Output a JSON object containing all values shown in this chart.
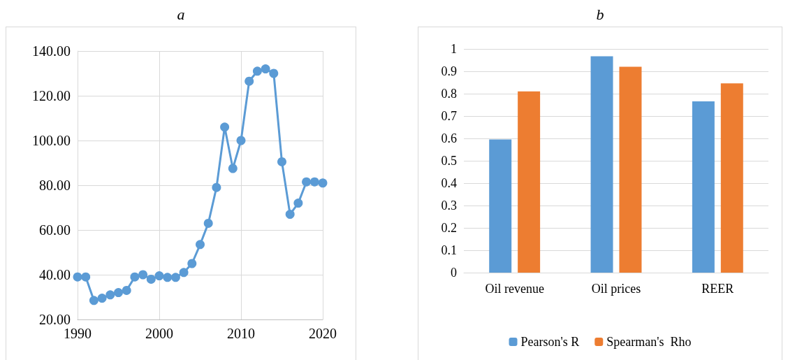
{
  "chart_data": [
    {
      "type": "line",
      "title": "a",
      "x": [
        1990,
        1991,
        1992,
        1993,
        1994,
        1995,
        1996,
        1997,
        1998,
        1999,
        2000,
        2001,
        2002,
        2003,
        2004,
        2005,
        2006,
        2007,
        2008,
        2009,
        2010,
        2011,
        2012,
        2013,
        2014,
        2015,
        2016,
        2017,
        2018,
        2019,
        2020
      ],
      "series": [
        {
          "color": "#5b9bd5",
          "values": [
            39,
            39,
            28.5,
            29.5,
            31,
            32,
            33,
            39,
            40,
            38,
            39.5,
            38.8,
            38.8,
            41,
            45,
            53.5,
            63,
            79,
            106,
            87.5,
            100,
            126.5,
            131,
            132,
            130,
            90.5,
            67,
            72,
            81.5,
            81.5,
            81
          ]
        }
      ],
      "xlim": [
        1990,
        2020
      ],
      "xticks": [
        1990,
        2000,
        2010,
        2020
      ],
      "ylim": [
        20,
        140
      ],
      "yticks": [
        {
          "value": 20,
          "label": "20.00"
        },
        {
          "value": 40,
          "label": "40.00"
        },
        {
          "value": 60,
          "label": "60.00"
        },
        {
          "value": 80,
          "label": "80.00"
        },
        {
          "value": 100,
          "label": "100.00"
        },
        {
          "value": 120,
          "label": "120.00"
        },
        {
          "value": 140,
          "label": "140.00"
        }
      ],
      "grid": true,
      "marker": "circle",
      "line_style": "solid",
      "legend": false
    },
    {
      "type": "bar",
      "title": "b",
      "categories": [
        "Oil revenue",
        "Oil prices",
        "REER"
      ],
      "series": [
        {
          "name": "Pearson's R",
          "color": "#5b9bd5",
          "values": [
            0.595,
            0.967,
            0.766
          ]
        },
        {
          "name": "Spearman's  Rho",
          "color": "#ed7d31",
          "values": [
            0.81,
            0.92,
            0.846
          ]
        }
      ],
      "ylim": [
        0,
        1
      ],
      "yticks": [
        0,
        0.1,
        0.2,
        0.3,
        0.4,
        0.5,
        0.6,
        0.7,
        0.8,
        0.9,
        1
      ],
      "grid": "y",
      "legend": "bottom"
    }
  ]
}
